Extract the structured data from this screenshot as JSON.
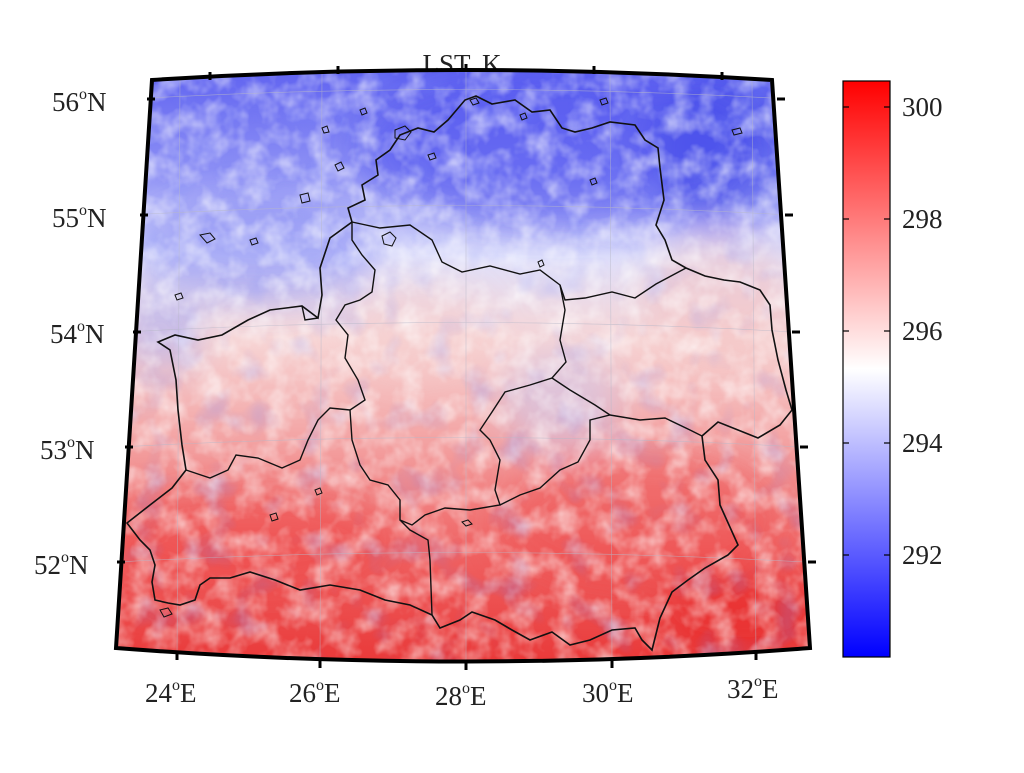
{
  "title": "LST, K",
  "map": {
    "lat_range": [
      51.2,
      56.2
    ],
    "lon_range": [
      23.2,
      32.8
    ],
    "lat_ticks": [
      {
        "deg": "56",
        "sup": "o",
        "hemi": "N"
      },
      {
        "deg": "55",
        "sup": "o",
        "hemi": "N"
      },
      {
        "deg": "54",
        "sup": "o",
        "hemi": "N"
      },
      {
        "deg": "53",
        "sup": "o",
        "hemi": "N"
      },
      {
        "deg": "52",
        "sup": "o",
        "hemi": "N"
      }
    ],
    "lon_ticks": [
      {
        "deg": "24",
        "sup": "o",
        "hemi": "E"
      },
      {
        "deg": "26",
        "sup": "o",
        "hemi": "E"
      },
      {
        "deg": "28",
        "sup": "o",
        "hemi": "E"
      },
      {
        "deg": "30",
        "sup": "o",
        "hemi": "E"
      },
      {
        "deg": "32",
        "sup": "o",
        "hemi": "E"
      }
    ],
    "features": [
      "Belarus national border",
      "Regional (oblast) boundaries",
      "Lakes"
    ],
    "pattern": "cold (blue) in north, warm (red) in south"
  },
  "colorbar": {
    "min": 290.2,
    "max": 300.4,
    "low_color": "#0000ff",
    "mid_color": "#ffffff",
    "high_color": "#ff0000",
    "ticks": [
      "300",
      "298",
      "296",
      "294",
      "292"
    ]
  }
}
